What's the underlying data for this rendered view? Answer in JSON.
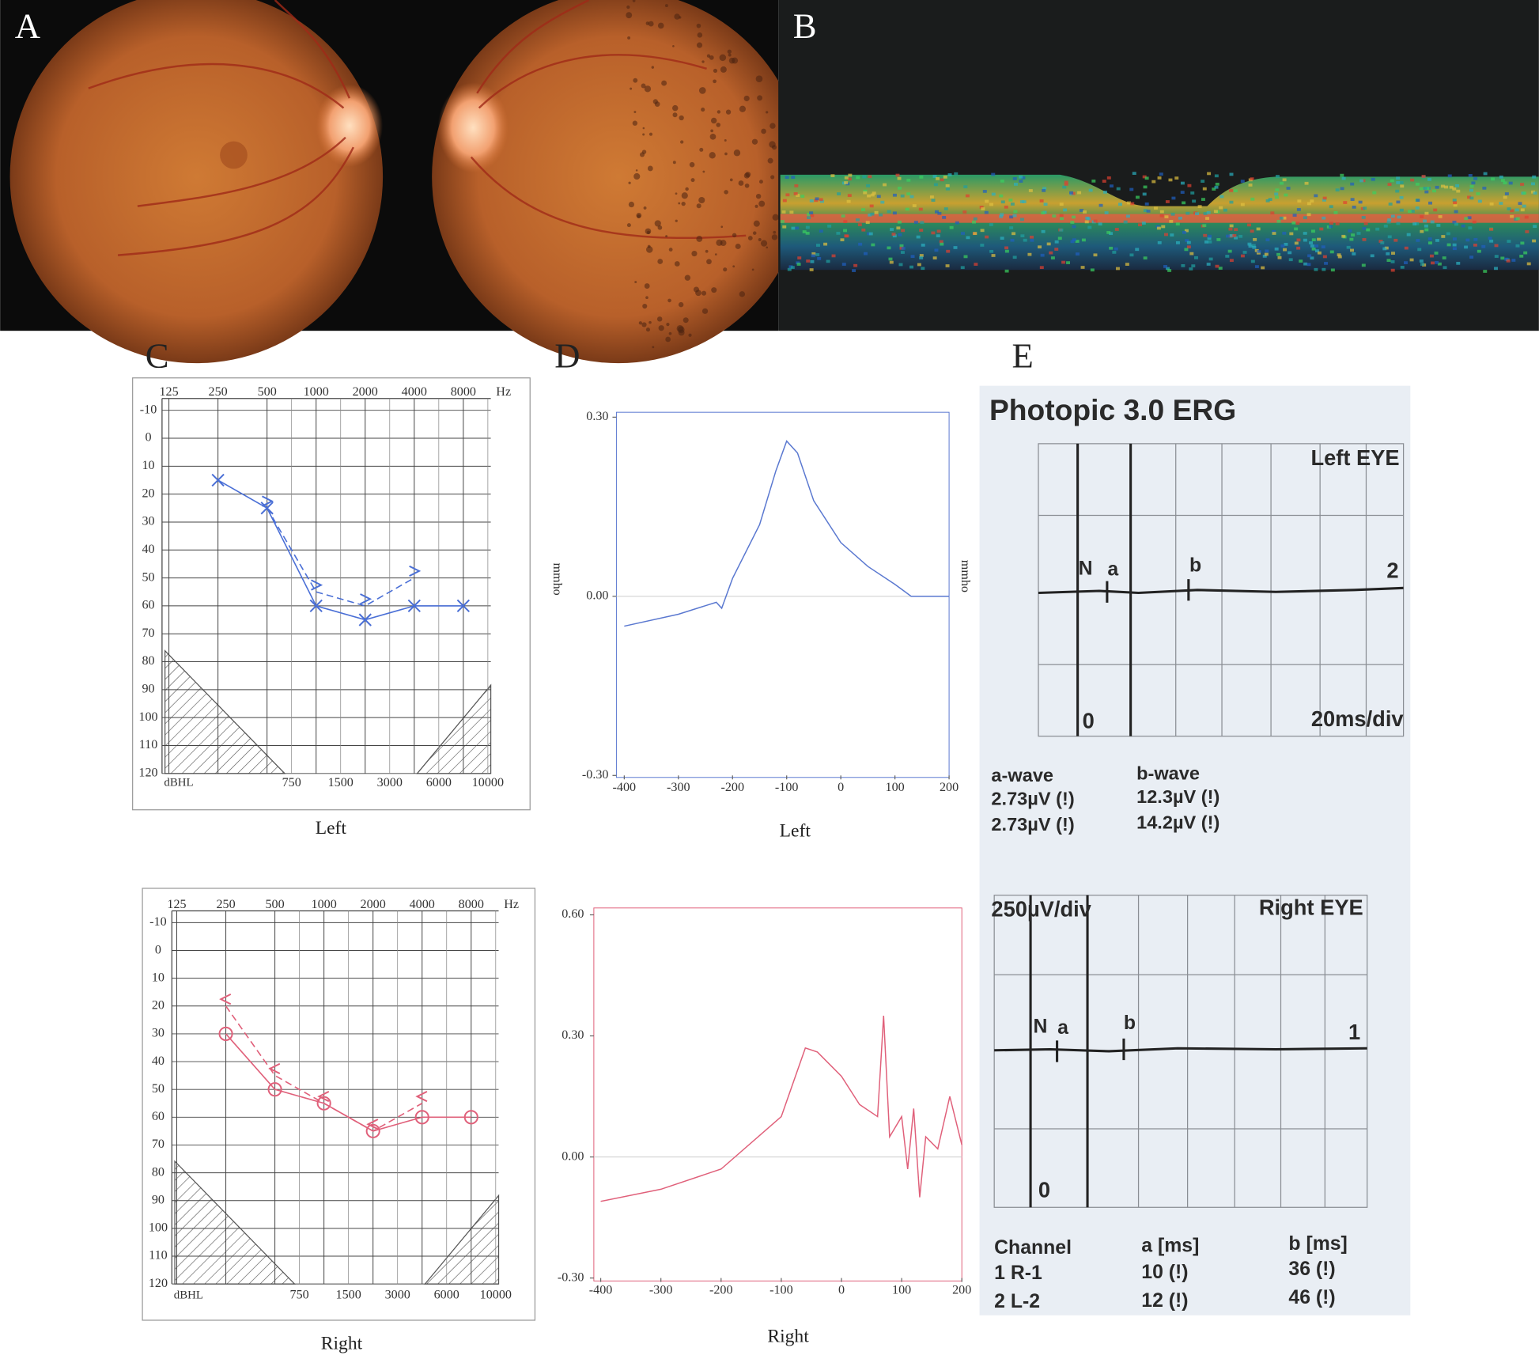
{
  "figure_labels": [
    "A",
    "B",
    "C",
    "D",
    "E"
  ],
  "chart_data": [
    {
      "type": "audiogram",
      "caption": "Left",
      "x_unit": "Hz",
      "y_unit": "dBHL",
      "categories": [
        "125",
        "250",
        "500",
        "1000",
        "2000",
        "4000",
        "8000"
      ],
      "minor_categories": [
        "750",
        "1500",
        "3000",
        "6000",
        "10000"
      ],
      "ylim": [
        -10,
        120
      ],
      "yticks": [
        -10,
        0,
        10,
        20,
        30,
        40,
        50,
        60,
        70,
        80,
        90,
        100,
        110,
        120
      ],
      "y_inverted": true,
      "grid": true,
      "series": [
        {
          "color": "#4a6fd6",
          "marker": "x",
          "dashed": false,
          "values": [
            null,
            15,
            25,
            60,
            65,
            60,
            60
          ]
        },
        {
          "color": "#4a6fd6",
          "marker": ">",
          "dashed": true,
          "values": [
            null,
            null,
            25,
            55,
            60,
            50,
            null
          ]
        }
      ]
    },
    {
      "type": "audiogram",
      "caption": "Right",
      "x_unit": "Hz",
      "y_unit": "dBHL",
      "categories": [
        "125",
        "250",
        "500",
        "1000",
        "2000",
        "4000",
        "8000"
      ],
      "minor_categories": [
        "750",
        "1500",
        "3000",
        "6000",
        "10000"
      ],
      "ylim": [
        -10,
        120
      ],
      "yticks": [
        -10,
        0,
        10,
        20,
        30,
        40,
        50,
        60,
        70,
        80,
        90,
        100,
        110,
        120
      ],
      "y_inverted": true,
      "grid": true,
      "series": [
        {
          "color": "#e0607a",
          "marker": "o",
          "dashed": false,
          "values": [
            null,
            30,
            50,
            55,
            65,
            60,
            60
          ]
        },
        {
          "color": "#e0607a",
          "marker": "<",
          "dashed": true,
          "values": [
            null,
            20,
            45,
            55,
            65,
            55,
            null
          ]
        }
      ]
    },
    {
      "type": "line",
      "caption": "Left",
      "ylabel": "mmho",
      "color": "#5a78d0",
      "x": [
        -400,
        -300,
        -230,
        -220,
        -200,
        -150,
        -120,
        -100,
        -80,
        -50,
        0,
        50,
        100,
        130,
        200
      ],
      "values": [
        -0.05,
        -0.03,
        -0.01,
        -0.02,
        0.03,
        0.12,
        0.21,
        0.26,
        0.24,
        0.16,
        0.09,
        0.05,
        0.02,
        0,
        0
      ],
      "xlim": [
        -400,
        200
      ],
      "xticks": [
        -400,
        -300,
        -200,
        -100,
        0,
        100,
        200
      ],
      "ylim": [
        -0.3,
        0.3
      ],
      "yticks": [
        {
          "value": -0.3,
          "label": "-0.30"
        },
        {
          "value": 0,
          "label": "0.00"
        },
        {
          "value": 0.3,
          "label": "0.30"
        }
      ]
    },
    {
      "type": "line",
      "caption": "Right",
      "color": "#e0607a",
      "x": [
        -400,
        -300,
        -200,
        -100,
        -60,
        -40,
        0,
        30,
        60,
        70,
        80,
        100,
        110,
        120,
        130,
        140,
        160,
        180,
        200
      ],
      "values": [
        -0.11,
        -0.08,
        -0.03,
        0.1,
        0.27,
        0.26,
        0.2,
        0.13,
        0.1,
        0.35,
        0.05,
        0.1,
        -0.03,
        0.12,
        -0.1,
        0.05,
        0.02,
        0.15,
        0.03
      ],
      "xlim": [
        -400,
        200
      ],
      "xticks": [
        -400,
        -300,
        -200,
        -100,
        0,
        100,
        200
      ],
      "ylim": [
        -0.3,
        0.6
      ],
      "yticks": [
        {
          "value": -0.3,
          "label": "-0.30"
        },
        {
          "value": 0,
          "label": "0.00"
        },
        {
          "value": 0.3,
          "label": "0.30"
        },
        {
          "value": 0.6,
          "label": "0.60"
        }
      ]
    }
  ],
  "erg": {
    "title": "Photopic 3.0 ERG",
    "left": {
      "eye": "Left EYE",
      "scale": "20ms/div",
      "markers": [
        "N",
        "a",
        "b"
      ],
      "channel": 2,
      "origin": 0
    },
    "right": {
      "eye": "Right EYE",
      "scale": "250µV/div",
      "markers": [
        "N",
        "a",
        "b"
      ],
      "channel": 1,
      "origin": 0
    },
    "amplitudes": {
      "headers": [
        "a-wave",
        "b-wave"
      ],
      "rows": [
        [
          "2.73µV (!)",
          "12.3µV (!)"
        ],
        [
          "2.73µV (!)",
          "14.2µV (!)"
        ]
      ]
    },
    "latencies": {
      "headers": [
        "Channel",
        "a [ms]",
        "b [ms]"
      ],
      "rows": [
        [
          "1 R-1",
          "10 (!)",
          "36 (!)"
        ],
        [
          "2 L-2",
          "12 (!)",
          "46 (!)"
        ]
      ]
    }
  }
}
